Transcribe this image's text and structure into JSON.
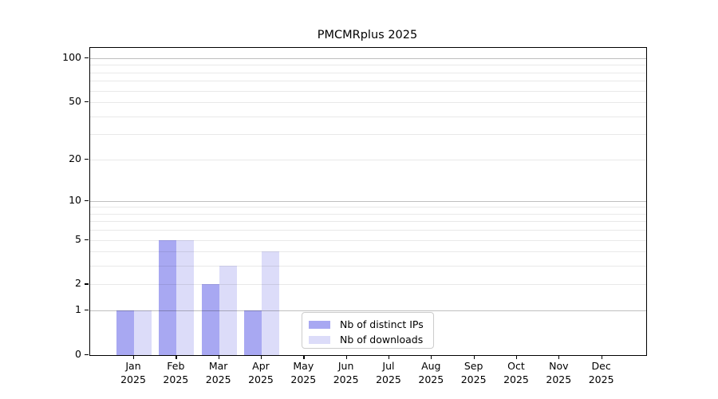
{
  "figure": {
    "title": "PMCMRplus 2025"
  },
  "chart_data": {
    "type": "bar",
    "title": "PMCMRplus 2025",
    "categories": [
      "Jan",
      "Feb",
      "Mar",
      "Apr",
      "May",
      "Jun",
      "Jul",
      "Aug",
      "Sep",
      "Oct",
      "Nov",
      "Dec"
    ],
    "year_label": "2025",
    "series": [
      {
        "name": "Nb of distinct IPs",
        "color": "#a8a8f2",
        "values": [
          1,
          5,
          2,
          1,
          0,
          0,
          0,
          0,
          0,
          0,
          0,
          0
        ]
      },
      {
        "name": "Nb of downloads",
        "color": "#dcdcf9",
        "values": [
          1,
          5,
          3,
          4,
          0,
          0,
          0,
          0,
          0,
          0,
          0,
          0
        ]
      }
    ],
    "xlabel": "",
    "ylabel": "",
    "y_axis": {
      "scale": "log1p",
      "range": [
        0,
        100
      ],
      "ticks": [
        0,
        1,
        2,
        5,
        10,
        20,
        50,
        100
      ],
      "major_gridlines": [
        1,
        10,
        100
      ],
      "minor_gridlines": [
        2,
        3,
        4,
        5,
        6,
        7,
        8,
        9,
        20,
        30,
        40,
        50,
        60,
        70,
        80,
        90
      ]
    },
    "legend": {
      "position": "lower center inside",
      "entries": [
        "Nb of distinct IPs",
        "Nb of downloads"
      ]
    },
    "grid": "on, drawn above bars"
  }
}
